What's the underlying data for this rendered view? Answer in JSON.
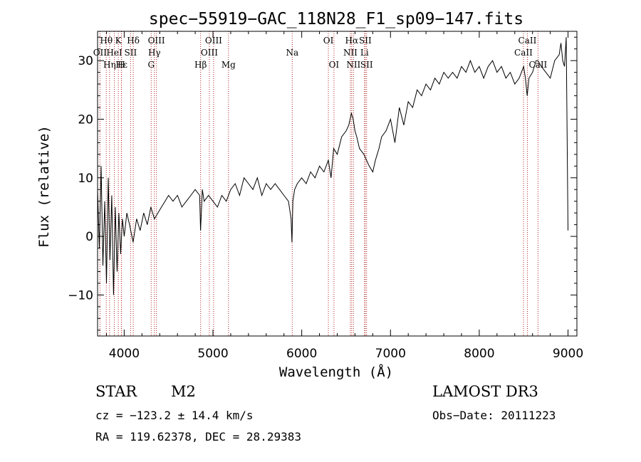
{
  "chart_data": {
    "type": "line",
    "title": "spec−55919−GAC_118N28_F1_sp09−147.fits",
    "xlabel": "Wavelength (Å)",
    "ylabel": "Flux (relative)",
    "xlim": [
      3700,
      9100
    ],
    "ylim": [
      -17,
      35
    ],
    "xticks": [
      4000,
      5000,
      6000,
      7000,
      8000,
      9000
    ],
    "yticks": [
      -10,
      0,
      10,
      20,
      30
    ],
    "xtick_labels": [
      "4000",
      "5000",
      "6000",
      "7000",
      "8000",
      "9000"
    ],
    "ytick_labels": [
      "−10",
      "0",
      "10",
      "20",
      "30"
    ],
    "series": [
      {
        "name": "spectrum",
        "x": [
          3700,
          3720,
          3740,
          3760,
          3780,
          3800,
          3820,
          3840,
          3860,
          3880,
          3900,
          3920,
          3940,
          3960,
          3980,
          4000,
          4030,
          4060,
          4100,
          4140,
          4180,
          4220,
          4260,
          4300,
          4340,
          4380,
          4420,
          4460,
          4500,
          4550,
          4600,
          4650,
          4700,
          4750,
          4800,
          4850,
          4860,
          4880,
          4900,
          4950,
          5000,
          5050,
          5100,
          5150,
          5200,
          5250,
          5300,
          5350,
          5400,
          5450,
          5500,
          5550,
          5600,
          5650,
          5700,
          5750,
          5800,
          5850,
          5880,
          5890,
          5900,
          5920,
          5950,
          6000,
          6050,
          6100,
          6150,
          6200,
          6250,
          6300,
          6330,
          6360,
          6400,
          6450,
          6500,
          6530,
          6560,
          6580,
          6600,
          6620,
          6650,
          6700,
          6730,
          6760,
          6800,
          6830,
          6850,
          6870,
          6900,
          6950,
          7000,
          7050,
          7100,
          7150,
          7200,
          7250,
          7300,
          7350,
          7400,
          7450,
          7500,
          7550,
          7600,
          7650,
          7700,
          7750,
          7800,
          7850,
          7900,
          7950,
          8000,
          8050,
          8100,
          8150,
          8200,
          8250,
          8300,
          8350,
          8400,
          8450,
          8500,
          8520,
          8540,
          8560,
          8600,
          8640,
          8660,
          8700,
          8750,
          8800,
          8850,
          8900,
          8920,
          8940,
          8960,
          8980,
          9000
        ],
        "values": [
          8,
          -2,
          12,
          -5,
          6,
          -8,
          10,
          -4,
          7,
          -10,
          5,
          -6,
          4,
          -3,
          3,
          0,
          4,
          2,
          -1,
          3,
          1,
          4,
          2,
          5,
          3,
          4,
          5,
          6,
          7,
          6,
          7,
          5,
          6,
          7,
          8,
          7,
          1,
          8,
          6,
          7,
          6,
          5,
          7,
          6,
          8,
          9,
          7,
          10,
          9,
          8,
          10,
          7,
          9,
          8,
          9,
          8,
          7,
          6,
          3,
          -1,
          6,
          8,
          9,
          10,
          9,
          11,
          10,
          12,
          11,
          13,
          10,
          15,
          14,
          17,
          18,
          19,
          21,
          20,
          18,
          17,
          15,
          14,
          13,
          12,
          11,
          13,
          14,
          15,
          17,
          18,
          20,
          16,
          22,
          19,
          23,
          22,
          25,
          24,
          26,
          25,
          27,
          26,
          28,
          27,
          28,
          27,
          29,
          28,
          30,
          28,
          29,
          27,
          29,
          30,
          28,
          29,
          27,
          28,
          26,
          27,
          29,
          27,
          24,
          27,
          28,
          30,
          30,
          29,
          28,
          27,
          30,
          31,
          33,
          30,
          29,
          34,
          1
        ]
      }
    ],
    "emission_lines": [
      {
        "label": "Hθ",
        "wavelength": 3798,
        "row": 0
      },
      {
        "label": "K",
        "wavelength": 3934,
        "row": 0
      },
      {
        "label": "Hδ",
        "wavelength": 4102,
        "row": 0
      },
      {
        "label": "OIII",
        "wavelength": 4363,
        "row": 0
      },
      {
        "label": "OIII",
        "wavelength": 5007,
        "row": 0
      },
      {
        "label": "OI",
        "wavelength": 6300,
        "row": 0
      },
      {
        "label": "Hα",
        "wavelength": 6563,
        "row": 0
      },
      {
        "label": "SII",
        "wavelength": 6716,
        "row": 0
      },
      {
        "label": "CaII",
        "wavelength": 8542,
        "row": 0
      },
      {
        "label": "OII",
        "wavelength": 3727,
        "row": 1
      },
      {
        "label": "HeI",
        "wavelength": 3889,
        "row": 1
      },
      {
        "label": "SII",
        "wavelength": 4072,
        "row": 1
      },
      {
        "label": "Hγ",
        "wavelength": 4340,
        "row": 1
      },
      {
        "label": "OIII",
        "wavelength": 4959,
        "row": 1
      },
      {
        "label": "Na",
        "wavelength": 5893,
        "row": 1
      },
      {
        "label": "NII",
        "wavelength": 6548,
        "row": 1
      },
      {
        "label": "Li",
        "wavelength": 6707,
        "row": 1
      },
      {
        "label": "CaII",
        "wavelength": 8498,
        "row": 1
      },
      {
        "label": "Hε",
        "wavelength": 3970,
        "row": 2
      },
      {
        "label": "Hη",
        "wavelength": 3835,
        "row": 2
      },
      {
        "label": "H",
        "wavelength": 3968,
        "row": 2
      },
      {
        "label": "G",
        "wavelength": 4304,
        "row": 2
      },
      {
        "label": "Hβ",
        "wavelength": 4861,
        "row": 2
      },
      {
        "label": "Mg",
        "wavelength": 5175,
        "row": 2
      },
      {
        "label": "OI",
        "wavelength": 6363,
        "row": 2
      },
      {
        "label": "NII",
        "wavelength": 6583,
        "row": 2
      },
      {
        "label": "SII",
        "wavelength": 6731,
        "row": 2
      },
      {
        "label": "CaII",
        "wavelength": 8662,
        "row": 2
      }
    ]
  },
  "info": {
    "class_label": "STAR",
    "subclass": "M2",
    "survey": "LAMOST DR3",
    "velocity": "cz = −123.2 ± 14.4 km/s",
    "obs_date": "Obs−Date: 20111223",
    "coords": "RA = 119.62378, DEC =  28.29383"
  },
  "colors": {
    "line_marker": "#b22222",
    "spectrum": "#000000",
    "axes": "#000000"
  }
}
